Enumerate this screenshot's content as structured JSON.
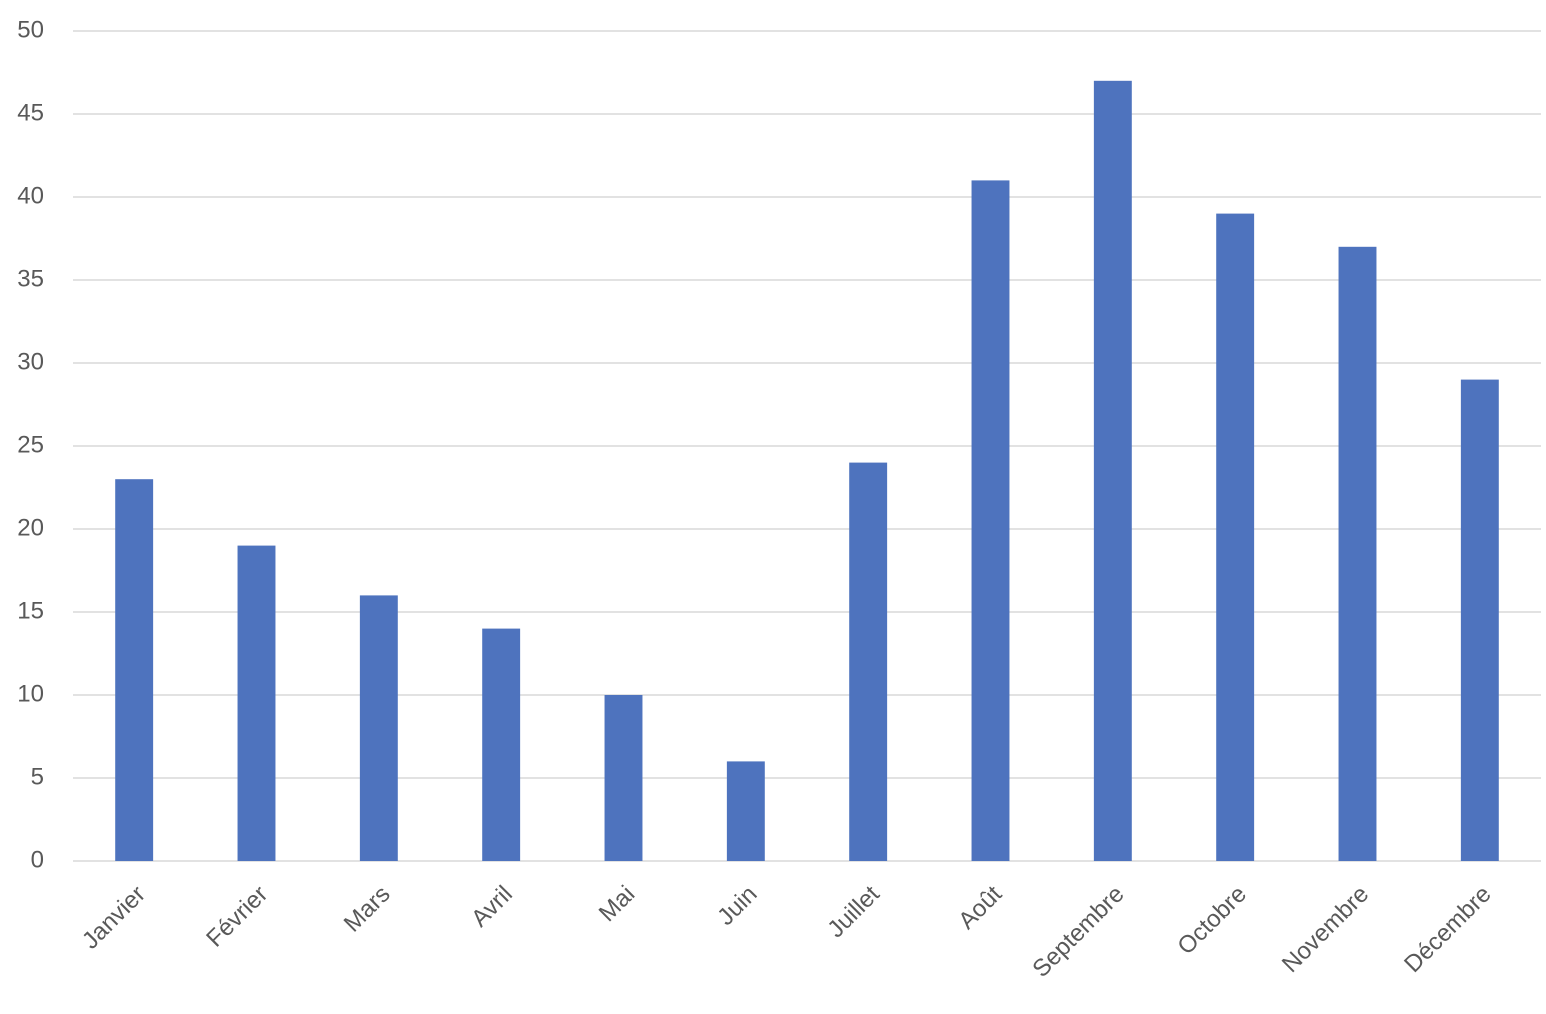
{
  "chart_data": {
    "type": "bar",
    "categories": [
      "Janvier",
      "Février",
      "Mars",
      "Avril",
      "Mai",
      "Juin",
      "Juillet",
      "Août",
      "Septembre",
      "Octobre",
      "Novembre",
      "Décembre"
    ],
    "values": [
      23,
      19,
      16,
      14,
      10,
      6,
      24,
      41,
      47,
      39,
      37,
      29
    ],
    "color": "#4e73be",
    "ylim": [
      0,
      50
    ],
    "yticks": [
      0,
      5,
      10,
      15,
      20,
      25,
      30,
      35,
      40,
      45,
      50
    ],
    "grid": true
  }
}
